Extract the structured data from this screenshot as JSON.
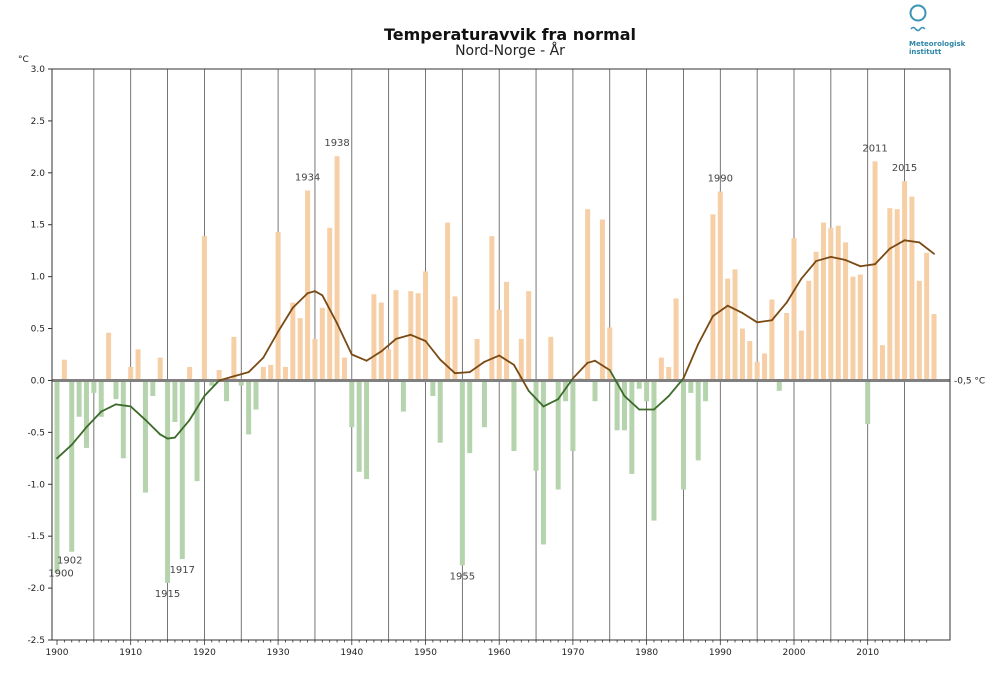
{
  "chart_data": {
    "type": "bar",
    "title": "Temperaturavvik fra normal",
    "subtitle": "Nord-Norge - År",
    "ylabel": "°C",
    "ylim": [
      -2.5,
      3.0
    ],
    "y_ticks": [
      "3.0",
      "2.5",
      "2.0",
      "1.5",
      "1.0",
      "0.5",
      "0.0",
      "-0.5",
      "-1.0",
      "-1.5",
      "-2.0",
      "-2.5"
    ],
    "xlim": [
      1900,
      2020
    ],
    "x_ticks": [
      "1900",
      "1910",
      "1920",
      "1930",
      "1940",
      "1950",
      "1960",
      "1970",
      "1980",
      "1990",
      "2000",
      "2010"
    ],
    "reference_label": "-0,5 °C",
    "colors": {
      "positive": "#f6cfa6",
      "negative": "#b5d4ad",
      "smooth_warm": "#7a4a14",
      "smooth_cold": "#3c6b2a",
      "zero_line": "#808080",
      "grid": "#555555"
    },
    "years": [
      1900,
      1901,
      1902,
      1903,
      1904,
      1905,
      1906,
      1907,
      1908,
      1909,
      1910,
      1911,
      1912,
      1913,
      1914,
      1915,
      1916,
      1917,
      1918,
      1919,
      1920,
      1921,
      1922,
      1923,
      1924,
      1925,
      1926,
      1927,
      1928,
      1929,
      1930,
      1931,
      1932,
      1933,
      1934,
      1935,
      1936,
      1937,
      1938,
      1939,
      1940,
      1941,
      1942,
      1943,
      1944,
      1945,
      1946,
      1947,
      1948,
      1949,
      1950,
      1951,
      1952,
      1953,
      1954,
      1955,
      1956,
      1957,
      1958,
      1959,
      1960,
      1961,
      1962,
      1963,
      1964,
      1965,
      1966,
      1967,
      1968,
      1969,
      1970,
      1971,
      1972,
      1973,
      1974,
      1975,
      1976,
      1977,
      1978,
      1979,
      1980,
      1981,
      1982,
      1983,
      1984,
      1985,
      1986,
      1987,
      1988,
      1989,
      1990,
      1991,
      1992,
      1993,
      1994,
      1995,
      1996,
      1997,
      1998,
      1999,
      2000,
      2001,
      2002,
      2003,
      2004,
      2005,
      2006,
      2007,
      2008,
      2009,
      2010,
      2011,
      2012,
      2013,
      2014,
      2015,
      2016,
      2017,
      2018,
      2019
    ],
    "values": [
      -1.85,
      0.2,
      -1.65,
      -0.35,
      -0.65,
      -0.12,
      -0.35,
      0.46,
      -0.18,
      -0.75,
      0.13,
      0.3,
      -1.08,
      -0.15,
      0.22,
      -1.95,
      -0.4,
      -1.72,
      0.13,
      -0.97,
      1.39,
      -0.05,
      0.1,
      -0.2,
      0.42,
      -0.05,
      -0.52,
      -0.28,
      0.13,
      0.15,
      1.43,
      0.13,
      0.75,
      0.6,
      1.83,
      0.4,
      0.7,
      1.47,
      2.16,
      0.22,
      -0.45,
      -0.88,
      -0.95,
      0.83,
      0.75,
      0.3,
      0.87,
      -0.3,
      0.86,
      0.84,
      1.05,
      -0.15,
      -0.6,
      1.52,
      0.81,
      -1.78,
      -0.7,
      0.4,
      -0.45,
      1.39,
      0.68,
      0.95,
      -0.68,
      0.4,
      0.86,
      -0.87,
      -1.58,
      0.42,
      -1.05,
      -0.2,
      -0.68,
      0.02,
      1.65,
      -0.2,
      1.55,
      0.51,
      -0.48,
      -0.48,
      -0.9,
      -0.08,
      -0.2,
      -1.35,
      0.22,
      0.13,
      0.79,
      -1.05,
      -0.12,
      -0.77,
      -0.2,
      1.6,
      1.82,
      0.98,
      1.07,
      0.5,
      0.38,
      0.18,
      0.26,
      0.78,
      -0.1,
      0.65,
      1.37,
      0.48,
      0.96,
      1.24,
      1.52,
      1.47,
      1.49,
      1.33,
      1.0,
      1.02,
      -0.42,
      2.11,
      0.34,
      1.66,
      1.65,
      1.92,
      1.77,
      0.96,
      1.23,
      0.64
    ],
    "smooth": [
      [
        1900,
        -0.75
      ],
      [
        1902,
        -0.62
      ],
      [
        1904,
        -0.45
      ],
      [
        1906,
        -0.3
      ],
      [
        1908,
        -0.23
      ],
      [
        1910,
        -0.25
      ],
      [
        1912,
        -0.38
      ],
      [
        1914,
        -0.52
      ],
      [
        1915,
        -0.56
      ],
      [
        1916,
        -0.55
      ],
      [
        1918,
        -0.38
      ],
      [
        1920,
        -0.15
      ],
      [
        1922,
        0.0
      ],
      [
        1924,
        0.04
      ],
      [
        1926,
        0.08
      ],
      [
        1928,
        0.22
      ],
      [
        1930,
        0.47
      ],
      [
        1932,
        0.7
      ],
      [
        1934,
        0.84
      ],
      [
        1935,
        0.86
      ],
      [
        1936,
        0.82
      ],
      [
        1938,
        0.55
      ],
      [
        1940,
        0.25
      ],
      [
        1942,
        0.19
      ],
      [
        1944,
        0.28
      ],
      [
        1946,
        0.4
      ],
      [
        1948,
        0.44
      ],
      [
        1950,
        0.38
      ],
      [
        1952,
        0.2
      ],
      [
        1954,
        0.07
      ],
      [
        1956,
        0.08
      ],
      [
        1958,
        0.18
      ],
      [
        1960,
        0.24
      ],
      [
        1962,
        0.15
      ],
      [
        1964,
        -0.1
      ],
      [
        1966,
        -0.25
      ],
      [
        1968,
        -0.18
      ],
      [
        1970,
        0.02
      ],
      [
        1972,
        0.17
      ],
      [
        1973,
        0.19
      ],
      [
        1975,
        0.1
      ],
      [
        1977,
        -0.15
      ],
      [
        1979,
        -0.28
      ],
      [
        1981,
        -0.28
      ],
      [
        1983,
        -0.15
      ],
      [
        1985,
        0.02
      ],
      [
        1987,
        0.35
      ],
      [
        1989,
        0.62
      ],
      [
        1991,
        0.72
      ],
      [
        1993,
        0.65
      ],
      [
        1995,
        0.56
      ],
      [
        1997,
        0.58
      ],
      [
        1999,
        0.75
      ],
      [
        2001,
        0.98
      ],
      [
        2003,
        1.15
      ],
      [
        2005,
        1.19
      ],
      [
        2007,
        1.16
      ],
      [
        2009,
        1.1
      ],
      [
        2011,
        1.12
      ],
      [
        2013,
        1.27
      ],
      [
        2015,
        1.35
      ],
      [
        2017,
        1.33
      ],
      [
        2019,
        1.22
      ]
    ],
    "annotations": [
      {
        "year": 1900,
        "label": "1900"
      },
      {
        "year": 1902,
        "label": "1902"
      },
      {
        "year": 1915,
        "label": "1915"
      },
      {
        "year": 1917,
        "label": "1917"
      },
      {
        "year": 1934,
        "label": "1934"
      },
      {
        "year": 1938,
        "label": "1938"
      },
      {
        "year": 1955,
        "label": "1955"
      },
      {
        "year": 1990,
        "label": "1990"
      },
      {
        "year": 2011,
        "label": "2011"
      },
      {
        "year": 2015,
        "label": "2015"
      }
    ]
  },
  "logo": {
    "line1": "Meteorologisk",
    "line2": "institutt"
  }
}
